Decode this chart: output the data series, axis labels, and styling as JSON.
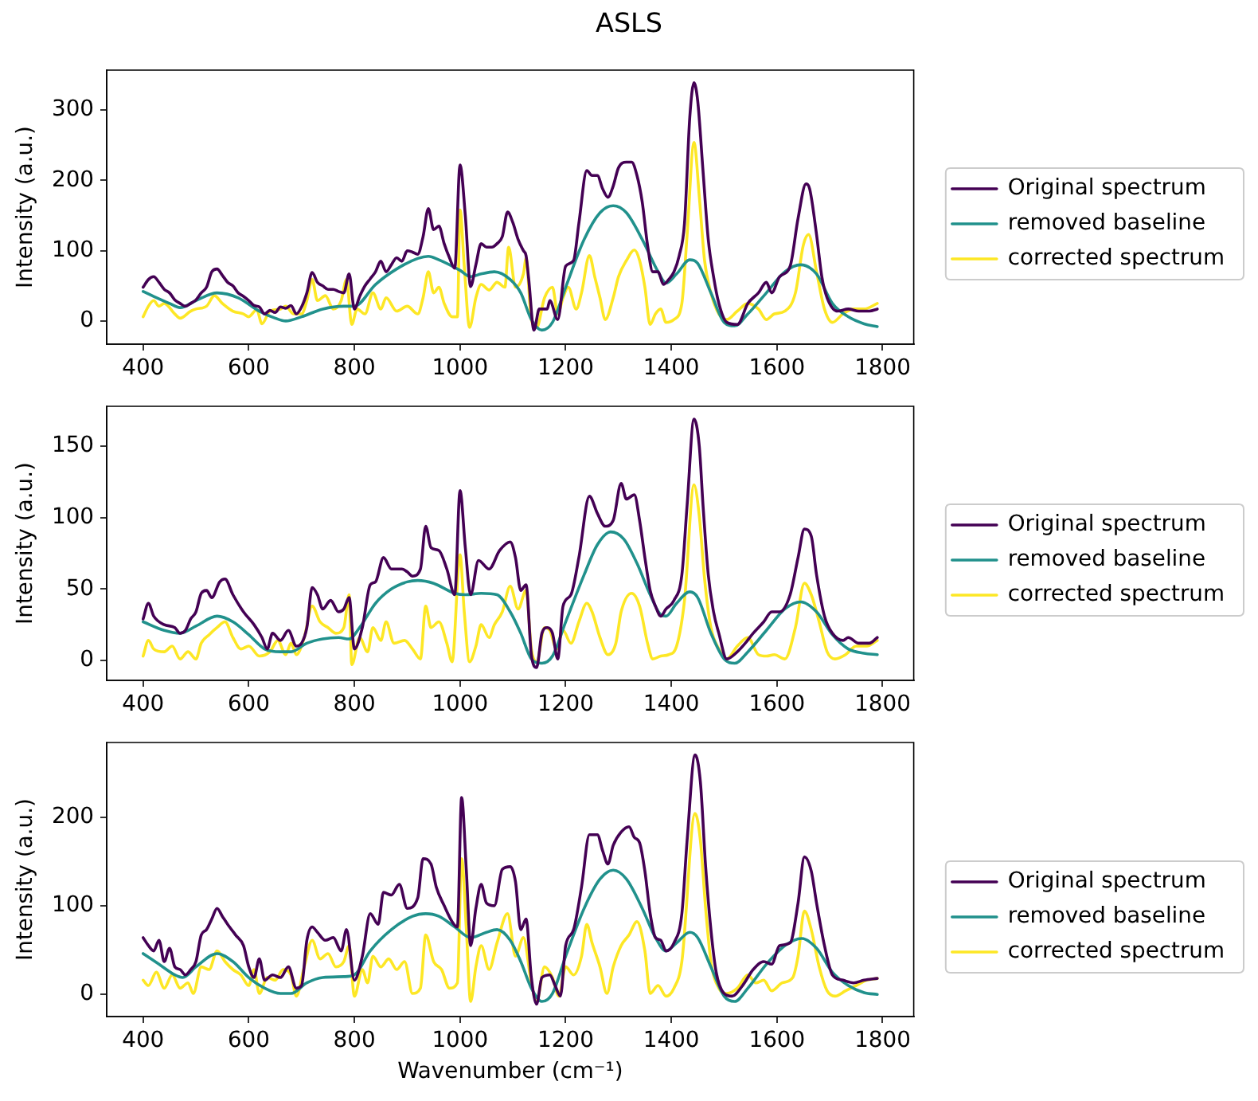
{
  "chart_data": [
    {
      "type": "line",
      "title": "ASLS",
      "ylabel": "Intensity (a.u.)",
      "legend": "right",
      "xlim": [
        331,
        1859
      ],
      "ylim": [
        -33,
        357
      ],
      "xticks": [
        400,
        600,
        800,
        1000,
        1200,
        1400,
        1600,
        1800
      ],
      "yticks": [
        0,
        100,
        200,
        300
      ],
      "series": [
        {
          "name": "Original spectrum",
          "color": "#440154",
          "x": [
            400,
            410,
            420,
            430,
            440,
            450,
            460,
            470,
            480,
            490,
            500,
            510,
            520,
            530,
            540,
            550,
            560,
            570,
            580,
            590,
            600,
            610,
            620,
            630,
            640,
            650,
            660,
            670,
            680,
            690,
            700,
            710,
            720,
            730,
            740,
            750,
            760,
            770,
            780,
            790,
            800,
            810,
            820,
            830,
            840,
            850,
            860,
            870,
            880,
            890,
            900,
            910,
            920,
            930,
            940,
            950,
            960,
            970,
            980,
            990,
            1000,
            1010,
            1020,
            1030,
            1040,
            1050,
            1060,
            1070,
            1080,
            1090,
            1100,
            1110,
            1120,
            1125,
            1130,
            1140,
            1150,
            1165,
            1170,
            1185,
            1200,
            1215,
            1225,
            1240,
            1250,
            1260,
            1270,
            1280,
            1290,
            1300,
            1315,
            1325,
            1335,
            1345,
            1355,
            1365,
            1375,
            1385,
            1395,
            1405,
            1415,
            1425,
            1435,
            1443,
            1450,
            1460,
            1470,
            1480,
            1490,
            1505,
            1525,
            1545,
            1565,
            1580,
            1590,
            1605,
            1625,
            1640,
            1655,
            1662,
            1675,
            1685,
            1695,
            1715,
            1735,
            1755,
            1775,
            1790
          ],
          "values": [
            48,
            59,
            63,
            55,
            45,
            40,
            30,
            25,
            21,
            25,
            30,
            40,
            48,
            70,
            74,
            65,
            55,
            50,
            40,
            35,
            29,
            22,
            20,
            10,
            15,
            12,
            20,
            18,
            22,
            10,
            20,
            40,
            69,
            55,
            50,
            45,
            45,
            42,
            40,
            67,
            17,
            35,
            50,
            60,
            70,
            85,
            70,
            80,
            90,
            85,
            100,
            98,
            95,
            120,
            160,
            130,
            135,
            110,
            90,
            75,
            222,
            150,
            49,
            80,
            110,
            105,
            105,
            110,
            120,
            155,
            140,
            116,
            100,
            93,
            60,
            -13,
            17,
            17,
            29,
            2,
            78,
            86,
            139,
            214,
            207,
            207,
            188,
            176,
            192,
            218,
            226,
            226,
            207,
            169,
            108,
            70,
            70,
            52,
            59,
            70,
            93,
            139,
            290,
            339,
            313,
            214,
            116,
            63,
            25,
            -2,
            -5,
            25,
            40,
            55,
            40,
            63,
            78,
            146,
            195,
            188,
            123,
            63,
            33,
            14,
            17,
            14,
            14,
            17
          ]
        },
        {
          "name": "removed baseline",
          "color": "#21918c",
          "x": [
            400,
            420,
            450,
            470,
            500,
            540,
            580,
            620,
            650,
            670,
            700,
            740,
            780,
            800,
            840,
            880,
            920,
            940,
            960,
            1000,
            1020,
            1040,
            1065,
            1095,
            1115,
            1135,
            1155,
            1175,
            1200,
            1235,
            1265,
            1290,
            1315,
            1345,
            1375,
            1390,
            1410,
            1435,
            1450,
            1475,
            1500,
            1520,
            1545,
            1580,
            1615,
            1645,
            1675,
            1705,
            1735,
            1765,
            1790
          ],
          "values": [
            42,
            35,
            25,
            19,
            29,
            40,
            33,
            14,
            4,
            0,
            6,
            17,
            21,
            21,
            52,
            74,
            89,
            92,
            87,
            72,
            63,
            67,
            70,
            59,
            40,
            2,
            -13,
            -2,
            48,
            116,
            154,
            164,
            154,
            116,
            70,
            54,
            67,
            87,
            82,
            40,
            -2,
            -7,
            10,
            40,
            70,
            80,
            67,
            25,
            6,
            -4,
            -8
          ]
        },
        {
          "name": "corrected spectrum",
          "color": "#fde725",
          "x": [
            400,
            410,
            420,
            430,
            440,
            460,
            470,
            490,
            500,
            520,
            535,
            550,
            570,
            590,
            600,
            615,
            625,
            640,
            660,
            670,
            685,
            700,
            710,
            720,
            730,
            745,
            760,
            775,
            785,
            795,
            805,
            820,
            835,
            850,
            860,
            880,
            900,
            920,
            930,
            940,
            950,
            960,
            970,
            985,
            995,
            1000,
            1008,
            1018,
            1030,
            1040,
            1055,
            1070,
            1085,
            1092,
            1105,
            1120,
            1125,
            1135,
            1145,
            1160,
            1175,
            1185,
            1195,
            1205,
            1220,
            1230,
            1245,
            1255,
            1265,
            1275,
            1290,
            1300,
            1315,
            1330,
            1340,
            1350,
            1360,
            1370,
            1380,
            1390,
            1405,
            1420,
            1430,
            1443,
            1453,
            1463,
            1475,
            1490,
            1505,
            1525,
            1545,
            1565,
            1580,
            1595,
            1615,
            1635,
            1650,
            1660,
            1675,
            1690,
            1705,
            1725,
            1745,
            1765,
            1790
          ],
          "values": [
            6,
            21,
            29,
            21,
            25,
            10,
            4,
            14,
            17,
            21,
            36,
            25,
            14,
            10,
            6,
            16,
            -4,
            14,
            17,
            21,
            10,
            10,
            29,
            59,
            29,
            36,
            17,
            29,
            59,
            -5,
            17,
            10,
            40,
            17,
            33,
            14,
            21,
            10,
            33,
            70,
            40,
            48,
            25,
            6,
            6,
            158,
            78,
            -9,
            33,
            52,
            44,
            55,
            48,
            105,
            48,
            67,
            89,
            2,
            -9,
            33,
            48,
            10,
            33,
            48,
            17,
            40,
            93,
            63,
            33,
            2,
            33,
            63,
            86,
            101,
            86,
            48,
            -5,
            10,
            17,
            -2,
            2,
            25,
            123,
            254,
            177,
            86,
            40,
            10,
            2,
            14,
            25,
            17,
            2,
            10,
            14,
            40,
            108,
            123,
            70,
            17,
            -2,
            10,
            17,
            17,
            25
          ]
        }
      ]
    },
    {
      "type": "line",
      "ylabel": "Intensity (a.u.)",
      "legend": "right",
      "xlim": [
        331,
        1859
      ],
      "ylim": [
        -14,
        178
      ],
      "xticks": [
        400,
        600,
        800,
        1000,
        1200,
        1400,
        1600,
        1800
      ],
      "yticks": [
        0,
        50,
        100,
        150
      ],
      "series": [
        {
          "name": "Original spectrum",
          "color": "#440154",
          "x": [
            400,
            410,
            420,
            440,
            460,
            470,
            480,
            490,
            500,
            510,
            520,
            530,
            545,
            555,
            570,
            590,
            610,
            625,
            635,
            645,
            660,
            675,
            690,
            700,
            710,
            720,
            730,
            740,
            755,
            770,
            780,
            790,
            800,
            815,
            830,
            840,
            855,
            870,
            890,
            900,
            910,
            925,
            935,
            945,
            960,
            975,
            990,
            1000,
            1010,
            1020,
            1035,
            1055,
            1075,
            1095,
            1105,
            1115,
            1125,
            1135,
            1145,
            1155,
            1165,
            1175,
            1185,
            1195,
            1210,
            1225,
            1245,
            1260,
            1275,
            1290,
            1305,
            1315,
            1330,
            1340,
            1350,
            1360,
            1370,
            1380,
            1390,
            1405,
            1420,
            1430,
            1443,
            1453,
            1460,
            1470,
            1480,
            1490,
            1505,
            1525,
            1540,
            1555,
            1575,
            1590,
            1605,
            1625,
            1640,
            1652,
            1665,
            1675,
            1690,
            1705,
            1725,
            1735,
            1755,
            1775,
            1790
          ],
          "values": [
            29,
            40,
            31,
            25,
            23,
            19,
            21,
            29,
            34,
            47,
            49,
            44,
            55,
            57,
            46,
            34,
            25,
            16,
            8,
            19,
            14,
            21,
            10,
            12,
            23,
            51,
            46,
            36,
            42,
            34,
            36,
            44,
            8,
            23,
            53,
            55,
            72,
            64,
            64,
            62,
            59,
            64,
            94,
            79,
            77,
            64,
            46,
            119,
            79,
            46,
            70,
            64,
            77,
            83,
            72,
            49,
            53,
            4,
            -5,
            19,
            23,
            19,
            1,
            38,
            46,
            72,
            115,
            103,
            94,
            98,
            124,
            113,
            116,
            98,
            72,
            49,
            38,
            31,
            36,
            42,
            60,
            109,
            169,
            150,
            109,
            60,
            34,
            19,
            1,
            6,
            12,
            19,
            27,
            34,
            34,
            46,
            72,
            92,
            87,
            60,
            31,
            19,
            14,
            16,
            12,
            12,
            16
          ]
        },
        {
          "name": "removed baseline",
          "color": "#21918c",
          "x": [
            400,
            440,
            470,
            500,
            540,
            570,
            600,
            630,
            660,
            680,
            710,
            740,
            770,
            790,
            810,
            840,
            870,
            900,
            920,
            950,
            990,
            1010,
            1040,
            1070,
            1095,
            1115,
            1135,
            1155,
            1175,
            1200,
            1235,
            1260,
            1285,
            1310,
            1335,
            1360,
            1380,
            1390,
            1410,
            1435,
            1450,
            1475,
            1500,
            1520,
            1545,
            1580,
            1615,
            1645,
            1675,
            1705,
            1735,
            1765,
            1790
          ],
          "values": [
            27,
            21,
            19,
            24,
            31,
            27,
            18,
            8,
            6,
            6,
            12,
            15,
            16,
            15,
            23,
            40,
            50,
            55,
            56,
            54,
            47,
            46,
            47,
            46,
            34,
            19,
            1,
            -2,
            3,
            27,
            60,
            81,
            90,
            85,
            68,
            46,
            32,
            31,
            40,
            48,
            44,
            19,
            1,
            -2,
            6,
            21,
            36,
            41,
            34,
            18,
            8,
            5,
            4
          ]
        },
        {
          "name": "corrected spectrum",
          "color": "#fde725",
          "x": [
            400,
            410,
            420,
            440,
            455,
            470,
            485,
            500,
            510,
            525,
            540,
            555,
            570,
            585,
            600,
            620,
            640,
            655,
            670,
            680,
            690,
            705,
            720,
            735,
            750,
            765,
            780,
            790,
            795,
            810,
            825,
            835,
            850,
            860,
            875,
            895,
            910,
            925,
            935,
            945,
            960,
            975,
            985,
            1000,
            1008,
            1018,
            1030,
            1040,
            1055,
            1065,
            1080,
            1095,
            1110,
            1125,
            1135,
            1145,
            1160,
            1170,
            1183,
            1195,
            1210,
            1225,
            1240,
            1250,
            1265,
            1280,
            1295,
            1305,
            1325,
            1340,
            1355,
            1365,
            1380,
            1395,
            1410,
            1425,
            1443,
            1453,
            1463,
            1475,
            1490,
            1505,
            1525,
            1545,
            1565,
            1580,
            1595,
            1615,
            1635,
            1652,
            1665,
            1680,
            1695,
            1710,
            1730,
            1750,
            1770,
            1790
          ],
          "values": [
            3,
            14,
            8,
            6,
            10,
            1,
            6,
            1,
            12,
            18,
            23,
            27,
            16,
            8,
            10,
            3,
            6,
            14,
            4,
            12,
            4,
            16,
            38,
            27,
            23,
            19,
            23,
            46,
            -3,
            16,
            6,
            23,
            14,
            27,
            12,
            14,
            8,
            1,
            38,
            23,
            27,
            12,
            -1,
            74,
            34,
            -1,
            10,
            25,
            16,
            25,
            34,
            52,
            36,
            49,
            8,
            -1,
            23,
            21,
            8,
            21,
            12,
            27,
            40,
            34,
            16,
            4,
            12,
            34,
            47,
            38,
            12,
            1,
            3,
            4,
            10,
            42,
            123,
            101,
            57,
            23,
            8,
            1,
            10,
            16,
            4,
            3,
            4,
            1,
            23,
            54,
            46,
            27,
            6,
            1,
            4,
            10,
            10,
            14
          ]
        }
      ]
    },
    {
      "type": "line",
      "xlabel": "Wavenumber (cm⁻¹)",
      "ylabel": "Intensity (a.u.)",
      "legend": "right",
      "xlim": [
        331,
        1859
      ],
      "ylim": [
        -25,
        284
      ],
      "xticks": [
        400,
        600,
        800,
        1000,
        1200,
        1400,
        1600,
        1800
      ],
      "yticks": [
        0,
        100,
        200
      ],
      "series": [
        {
          "name": "Original spectrum",
          "color": "#440154",
          "x": [
            400,
            410,
            420,
            430,
            440,
            450,
            460,
            470,
            480,
            490,
            500,
            510,
            520,
            530,
            540,
            550,
            560,
            575,
            590,
            600,
            610,
            620,
            630,
            645,
            660,
            675,
            690,
            700,
            710,
            720,
            730,
            745,
            760,
            775,
            785,
            800,
            815,
            830,
            845,
            855,
            870,
            885,
            900,
            920,
            930,
            945,
            955,
            970,
            985,
            995,
            1003,
            1012,
            1020,
            1030,
            1040,
            1050,
            1065,
            1080,
            1095,
            1105,
            1115,
            1125,
            1135,
            1145,
            1155,
            1170,
            1180,
            1190,
            1200,
            1215,
            1230,
            1245,
            1260,
            1270,
            1280,
            1290,
            1305,
            1320,
            1330,
            1340,
            1350,
            1360,
            1370,
            1380,
            1390,
            1405,
            1420,
            1430,
            1445,
            1455,
            1465,
            1475,
            1485,
            1500,
            1515,
            1535,
            1555,
            1575,
            1590,
            1605,
            1625,
            1640,
            1652,
            1665,
            1675,
            1690,
            1705,
            1725,
            1745,
            1765,
            1790
          ],
          "values": [
            64,
            55,
            49,
            61,
            37,
            52,
            31,
            28,
            22,
            28,
            37,
            67,
            73,
            85,
            97,
            88,
            79,
            67,
            55,
            31,
            19,
            40,
            16,
            22,
            19,
            31,
            7,
            10,
            61,
            76,
            70,
            61,
            64,
            49,
            73,
            16,
            43,
            91,
            79,
            115,
            112,
            124,
            97,
            109,
            153,
            147,
            121,
            100,
            82,
            76,
            222,
            139,
            55,
            97,
            124,
            103,
            100,
            141,
            144,
            127,
            73,
            85,
            19,
            -11,
            19,
            22,
            10,
            -2,
            55,
            73,
            121,
            180,
            180,
            162,
            147,
            168,
            183,
            189,
            177,
            171,
            139,
            91,
            64,
            61,
            49,
            58,
            91,
            174,
            270,
            240,
            144,
            73,
            25,
            1,
            -2,
            10,
            28,
            37,
            34,
            55,
            58,
            103,
            155,
            139,
            103,
            55,
            22,
            16,
            13,
            16,
            18
          ]
        },
        {
          "name": "removed baseline",
          "color": "#21918c",
          "x": [
            400,
            430,
            460,
            475,
            500,
            540,
            570,
            600,
            630,
            660,
            680,
            710,
            740,
            780,
            800,
            830,
            870,
            910,
            935,
            960,
            990,
            1020,
            1050,
            1070,
            1095,
            1115,
            1135,
            1155,
            1175,
            1200,
            1235,
            1265,
            1290,
            1315,
            1345,
            1370,
            1390,
            1410,
            1435,
            1450,
            1475,
            1500,
            1520,
            1545,
            1580,
            1615,
            1647,
            1675,
            1705,
            1735,
            1765,
            1790
          ],
          "values": [
            46,
            34,
            22,
            19,
            31,
            46,
            37,
            19,
            7,
            1,
            1,
            13,
            19,
            20,
            22,
            49,
            73,
            88,
            91,
            88,
            76,
            64,
            70,
            73,
            61,
            37,
            7,
            -8,
            1,
            43,
            97,
            130,
            140,
            130,
            97,
            64,
            49,
            58,
            70,
            64,
            31,
            -2,
            -8,
            7,
            34,
            55,
            63,
            52,
            25,
            10,
            2,
            0
          ]
        },
        {
          "name": "corrected spectrum",
          "color": "#fde725",
          "x": [
            400,
            410,
            425,
            440,
            455,
            470,
            485,
            495,
            510,
            525,
            540,
            555,
            570,
            585,
            600,
            610,
            620,
            635,
            650,
            665,
            680,
            690,
            705,
            720,
            735,
            750,
            765,
            780,
            790,
            800,
            815,
            825,
            835,
            850,
            865,
            880,
            895,
            910,
            925,
            935,
            950,
            965,
            980,
            995,
            1003,
            1012,
            1020,
            1030,
            1040,
            1055,
            1070,
            1090,
            1105,
            1120,
            1135,
            1145,
            1160,
            1175,
            1187,
            1200,
            1215,
            1230,
            1240,
            1250,
            1265,
            1278,
            1290,
            1305,
            1320,
            1335,
            1350,
            1360,
            1375,
            1390,
            1405,
            1420,
            1445,
            1455,
            1465,
            1475,
            1490,
            1505,
            1525,
            1545,
            1560,
            1575,
            1590,
            1610,
            1630,
            1640,
            1652,
            1665,
            1680,
            1695,
            1710,
            1730,
            1750,
            1770,
            1790
          ],
          "values": [
            16,
            10,
            25,
            7,
            22,
            7,
            13,
            1,
            31,
            28,
            49,
            37,
            28,
            22,
            10,
            28,
            1,
            19,
            16,
            28,
            22,
            -2,
            31,
            61,
            40,
            46,
            31,
            37,
            55,
            -2,
            28,
            13,
            43,
            31,
            40,
            28,
            37,
            1,
            7,
            67,
            37,
            28,
            7,
            13,
            153,
            73,
            -8,
            31,
            55,
            28,
            58,
            91,
            43,
            64,
            13,
            -8,
            31,
            19,
            -2,
            31,
            22,
            43,
            79,
            58,
            31,
            1,
            31,
            55,
            67,
            82,
            49,
            1,
            10,
            -2,
            7,
            37,
            204,
            174,
            97,
            37,
            7,
            1,
            7,
            22,
            13,
            16,
            4,
            13,
            19,
            43,
            94,
            73,
            31,
            4,
            -2,
            4,
            10,
            16,
            18
          ]
        }
      ]
    }
  ]
}
